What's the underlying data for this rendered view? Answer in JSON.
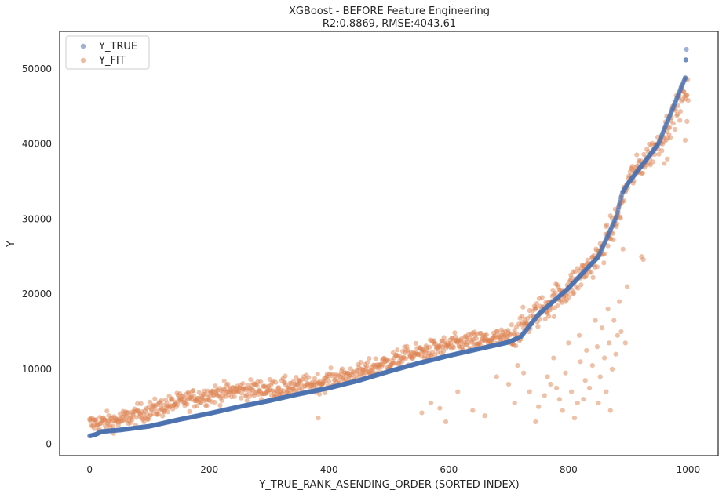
{
  "chart_data": {
    "type": "scatter",
    "title": "XGBoost - BEFORE Feature Engineering",
    "subtitle": "R2:0.8869, RMSE:4043.61",
    "xlabel": "Y_TRUE_RANK_ASENDING_ORDER (SORTED INDEX)",
    "ylabel": "Y",
    "xlim": [
      -50,
      1050
    ],
    "ylim": [
      -1500,
      55000
    ],
    "x_ticks": [
      0,
      200,
      400,
      600,
      800,
      1000
    ],
    "x_tick_labels": [
      "0",
      "200",
      "400",
      "600",
      "800",
      "1000"
    ],
    "y_ticks": [
      0,
      10000,
      20000,
      30000,
      40000,
      50000
    ],
    "y_tick_labels": [
      "0",
      "10000",
      "20000",
      "30000",
      "40000",
      "50000"
    ],
    "grid": false,
    "legend_position": "top-left",
    "n_points": 1000,
    "series": [
      {
        "name": "Y_TRUE",
        "color": "#4c72b0",
        "curve_points": [
          [
            0,
            1100
          ],
          [
            10,
            1300
          ],
          [
            20,
            1700
          ],
          [
            50,
            1900
          ],
          [
            100,
            2400
          ],
          [
            150,
            3300
          ],
          [
            200,
            4100
          ],
          [
            250,
            5000
          ],
          [
            300,
            5800
          ],
          [
            350,
            6700
          ],
          [
            400,
            7500
          ],
          [
            450,
            8500
          ],
          [
            500,
            9700
          ],
          [
            550,
            10800
          ],
          [
            600,
            11800
          ],
          [
            650,
            12700
          ],
          [
            700,
            13600
          ],
          [
            720,
            14300
          ],
          [
            750,
            17300
          ],
          [
            800,
            20800
          ],
          [
            850,
            25000
          ],
          [
            880,
            30300
          ],
          [
            890,
            33500
          ],
          [
            900,
            34800
          ],
          [
            950,
            40000
          ],
          [
            995,
            48800
          ],
          [
            996,
            51200
          ],
          [
            997,
            52600
          ]
        ]
      },
      {
        "name": "Y_FIT",
        "color": "#dd8452",
        "trend_points": [
          [
            0,
            2700
          ],
          [
            50,
            3200
          ],
          [
            100,
            4500
          ],
          [
            150,
            5600
          ],
          [
            200,
            6600
          ],
          [
            250,
            7200
          ],
          [
            300,
            7400
          ],
          [
            350,
            7700
          ],
          [
            400,
            8500
          ],
          [
            450,
            9500
          ],
          [
            500,
            11000
          ],
          [
            550,
            12200
          ],
          [
            600,
            13200
          ],
          [
            650,
            13800
          ],
          [
            700,
            14200
          ],
          [
            750,
            17600
          ],
          [
            800,
            20800
          ],
          [
            850,
            25000
          ],
          [
            880,
            29800
          ],
          [
            900,
            35200
          ],
          [
            950,
            40000
          ],
          [
            1000,
            47500
          ]
        ],
        "outliers": [
          [
            382,
            3500
          ],
          [
            555,
            4200
          ],
          [
            570,
            5500
          ],
          [
            585,
            4800
          ],
          [
            595,
            3000
          ],
          [
            615,
            7000
          ],
          [
            640,
            4500
          ],
          [
            660,
            3800
          ],
          [
            680,
            9000
          ],
          [
            700,
            8000
          ],
          [
            710,
            5500
          ],
          [
            715,
            10500
          ],
          [
            725,
            9500
          ],
          [
            735,
            7000
          ],
          [
            745,
            3000
          ],
          [
            750,
            5000
          ],
          [
            760,
            6500
          ],
          [
            765,
            9000
          ],
          [
            770,
            8000
          ],
          [
            775,
            11500
          ],
          [
            780,
            7500
          ],
          [
            785,
            6000
          ],
          [
            790,
            4500
          ],
          [
            795,
            9500
          ],
          [
            800,
            13500
          ],
          [
            805,
            7000
          ],
          [
            810,
            3500
          ],
          [
            815,
            5500
          ],
          [
            818,
            14500
          ],
          [
            820,
            11000
          ],
          [
            825,
            6000
          ],
          [
            828,
            8500
          ],
          [
            830,
            12500
          ],
          [
            835,
            7500
          ],
          [
            840,
            10500
          ],
          [
            845,
            16500
          ],
          [
            848,
            13000
          ],
          [
            850,
            5500
          ],
          [
            853,
            9000
          ],
          [
            856,
            15500
          ],
          [
            860,
            11500
          ],
          [
            863,
            7000
          ],
          [
            866,
            18000
          ],
          [
            868,
            13500
          ],
          [
            870,
            4500
          ],
          [
            873,
            10000
          ],
          [
            876,
            16500
          ],
          [
            879,
            12000
          ],
          [
            882,
            14500
          ],
          [
            885,
            19000
          ],
          [
            888,
            15000
          ],
          [
            891,
            26000
          ],
          [
            895,
            13500
          ],
          [
            898,
            21000
          ],
          [
            922,
            25000
          ],
          [
            925,
            24600
          ],
          [
            960,
            37400
          ],
          [
            965,
            38000
          ],
          [
            995,
            40500
          ],
          [
            1000,
            45800
          ],
          [
            998,
            43000
          ]
        ]
      }
    ]
  }
}
